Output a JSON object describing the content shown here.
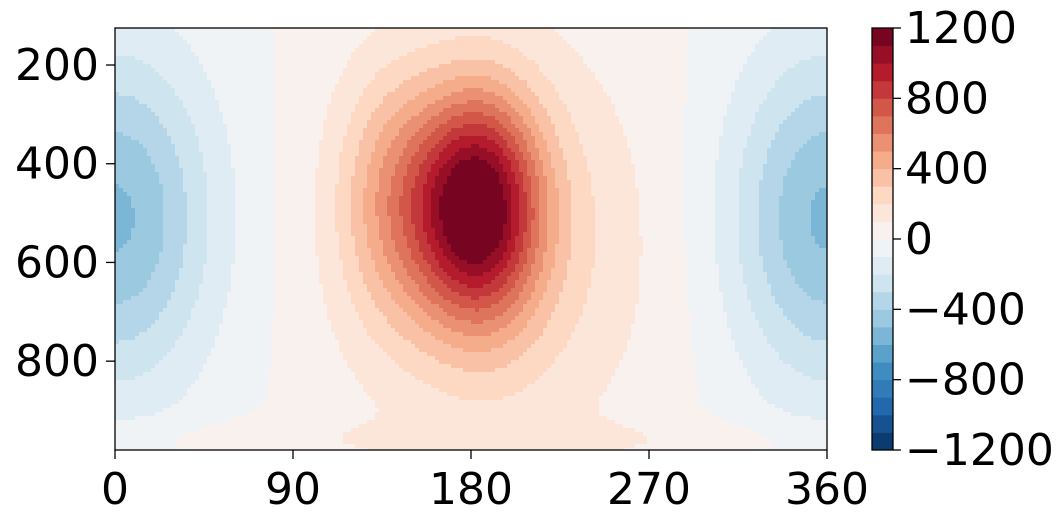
{
  "chart_data": {
    "type": "heatmap",
    "title": "",
    "xlabel": "",
    "ylabel": "",
    "xlim": [
      0,
      360
    ],
    "ylim": [
      980,
      125
    ],
    "x_ticks": [
      {
        "value": 0,
        "label": "0"
      },
      {
        "value": 90,
        "label": "90"
      },
      {
        "value": 180,
        "label": "180"
      },
      {
        "value": 270,
        "label": "270"
      },
      {
        "value": 360,
        "label": "360"
      }
    ],
    "y_ticks": [
      {
        "value": 200,
        "label": "200"
      },
      {
        "value": 400,
        "label": "400"
      },
      {
        "value": 600,
        "label": "600"
      },
      {
        "value": 800,
        "label": "800"
      }
    ],
    "colorbar": {
      "colormap": "RdBu_r",
      "range": [
        -1200,
        1200
      ],
      "levels": 24,
      "ticks": [
        {
          "value": 1200,
          "label": "1200"
        },
        {
          "value": 800,
          "label": "800"
        },
        {
          "value": 400,
          "label": "400"
        },
        {
          "value": 0,
          "label": "0"
        },
        {
          "value": -400,
          "label": "−400"
        },
        {
          "value": -800,
          "label": "−800"
        },
        {
          "value": -1200,
          "label": "−1200"
        }
      ]
    },
    "field_features": [
      {
        "kind": "positive-max",
        "x": 183,
        "y": 490,
        "amplitude": 1050,
        "x_spread": 22,
        "y_spread": 160
      },
      {
        "kind": "positive-shoulder",
        "x": 140,
        "y": 470,
        "amplitude": 320,
        "x_spread": 20,
        "y_spread": 180
      },
      {
        "kind": "positive-broad",
        "x": 195,
        "y": 560,
        "amplitude": 260,
        "x_spread": 55,
        "y_spread": 300
      },
      {
        "kind": "negative-min",
        "x": 0,
        "y": 510,
        "amplitude": -520,
        "x_spread": 35,
        "y_spread": 240
      },
      {
        "kind": "negative-min",
        "x": 360,
        "y": 510,
        "amplitude": -520,
        "x_spread": 35,
        "y_spread": 240
      }
    ]
  }
}
